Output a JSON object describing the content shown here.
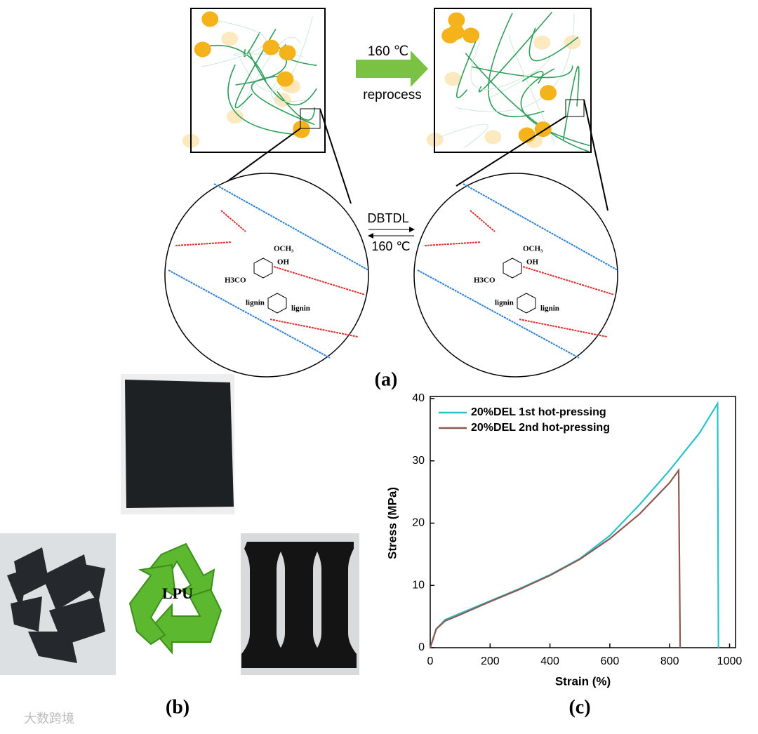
{
  "panel_a": {
    "label": "(a)",
    "arrow_top": "160 ℃",
    "arrow_bottom": "reprocess",
    "equilibrium_top": "DBTDL",
    "equilibrium_bottom": "160 ℃",
    "left_circle": [
      "OCH₃",
      "OH",
      "H3CO",
      "lignin",
      "lignin"
    ],
    "right_circle": [
      "OCH₃",
      "OH",
      "H3CO",
      "lignin",
      "lignin"
    ]
  },
  "panel_b": {
    "label": "(b)",
    "recycle_text": "LPU"
  },
  "watermark": "大数跨境",
  "chart_data": {
    "type": "line",
    "label": "(c)",
    "x_label": "Strain (%)",
    "y_label": "Stress (MPa)",
    "xlim": [
      0,
      1020
    ],
    "ylim": [
      0,
      40
    ],
    "xticks": [
      0,
      200,
      400,
      600,
      800,
      1000
    ],
    "yticks": [
      0,
      10,
      20,
      30,
      40
    ],
    "legend": "upper-left",
    "series": [
      {
        "name": "20%DEL 1st hot-pressing",
        "color": "#29c0d0",
        "x": [
          0,
          20,
          50,
          100,
          200,
          300,
          400,
          500,
          600,
          700,
          800,
          900,
          960,
          963
        ],
        "values": [
          0,
          3,
          4.5,
          5.5,
          7.5,
          9.5,
          11.7,
          14.3,
          18,
          23,
          28.5,
          34.5,
          39.2,
          0
        ]
      },
      {
        "name": "20%DEL 2nd hot-pressing",
        "color": "#8b5a50",
        "x": [
          0,
          20,
          50,
          100,
          200,
          300,
          400,
          500,
          600,
          700,
          800,
          830,
          835
        ],
        "values": [
          0,
          3,
          4.3,
          5.3,
          7.4,
          9.4,
          11.6,
          14.2,
          17.5,
          21.5,
          26.5,
          28.5,
          0
        ]
      }
    ]
  }
}
